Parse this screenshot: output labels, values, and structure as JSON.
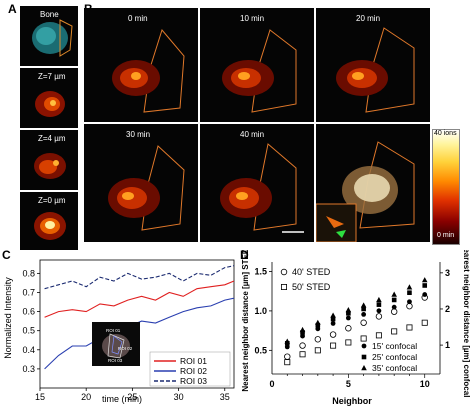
{
  "panels": {
    "a": "A",
    "b": "B",
    "c": "C",
    "d": "D"
  },
  "panel_a": {
    "labels": [
      "Bone",
      "Z=7 µm",
      "Z=4 µm",
      "Z=0 µm"
    ]
  },
  "panel_b": {
    "times": [
      "0 min",
      "10 min",
      "20 min",
      "30 min",
      "40 min"
    ],
    "colorbar": {
      "top": "40 ions",
      "bottom": "0 min"
    }
  },
  "chart_data": [
    {
      "type": "line",
      "xlabel": "time (min)",
      "ylabel": "Normalized Intensity",
      "xlim": [
        15,
        36
      ],
      "ylim": [
        0.2,
        0.87
      ],
      "xticks": [
        15,
        20,
        25,
        30,
        35
      ],
      "yticks": [
        0.3,
        0.4,
        0.5,
        0.6,
        0.7,
        0.8
      ],
      "legend_position": "bottom-right",
      "inset_labels": [
        "ROI 01",
        "ROI 02",
        "ROI 03"
      ],
      "series": [
        {
          "name": "ROI 01",
          "color": "#e02020",
          "style": "solid",
          "x": [
            15.5,
            17,
            18.5,
            20,
            21.5,
            23,
            24.5,
            26,
            27.5,
            29,
            30.5,
            32,
            33.5,
            35,
            36
          ],
          "y": [
            0.57,
            0.6,
            0.61,
            0.6,
            0.64,
            0.63,
            0.66,
            0.68,
            0.66,
            0.7,
            0.68,
            0.72,
            0.73,
            0.74,
            0.76
          ]
        },
        {
          "name": "ROI 02",
          "color": "#2a3fb0",
          "style": "solid",
          "x": [
            15.5,
            17,
            18.5,
            20,
            21.5,
            23,
            24.5,
            26,
            27.5,
            29,
            30.5,
            32,
            33.5,
            35,
            36
          ],
          "y": [
            0.3,
            0.37,
            0.42,
            0.42,
            0.46,
            0.48,
            0.52,
            0.55,
            0.54,
            0.57,
            0.6,
            0.62,
            0.63,
            0.66,
            0.67
          ]
        },
        {
          "name": "ROI 03",
          "color": "#1a2a70",
          "style": "dashed",
          "x": [
            15.5,
            17,
            18.5,
            20,
            21.5,
            23,
            24.5,
            26,
            27.5,
            29,
            30.5,
            32,
            33.5,
            35,
            36
          ],
          "y": [
            0.72,
            0.74,
            0.76,
            0.73,
            0.78,
            0.76,
            0.8,
            0.77,
            0.78,
            0.8,
            0.76,
            0.8,
            0.79,
            0.83,
            0.84
          ]
        }
      ]
    },
    {
      "type": "scatter",
      "xlabel": "Neighbor",
      "ylabel": "Nearest neighbor distance [µm] STED",
      "ylabel2": "Nearest neighbor distance [µm] confocal",
      "xlim": [
        0,
        11
      ],
      "ylim": [
        0.2,
        1.62
      ],
      "ylim2": [
        0.2,
        3.3
      ],
      "xticks": [
        0,
        5,
        10
      ],
      "yticks": [
        0.5,
        1.0,
        1.5
      ],
      "yticks2": [
        1,
        2,
        3
      ],
      "legend_sted": [
        "40' STED",
        "50' STED"
      ],
      "legend_confocal": [
        "15' confocal",
        "25' confocal",
        "35' confocal"
      ],
      "series": [
        {
          "name": "40' STED",
          "marker": "open-circle",
          "axis": "left",
          "x": [
            1,
            2,
            3,
            4,
            5,
            6,
            7,
            8,
            9,
            10
          ],
          "y": [
            0.42,
            0.56,
            0.64,
            0.7,
            0.78,
            0.85,
            0.93,
            0.99,
            1.06,
            1.17
          ]
        },
        {
          "name": "50' STED",
          "marker": "open-square",
          "axis": "left",
          "x": [
            1,
            2,
            3,
            4,
            5,
            6,
            7,
            8,
            9,
            10
          ],
          "y": [
            0.35,
            0.45,
            0.5,
            0.56,
            0.6,
            0.65,
            0.69,
            0.74,
            0.79,
            0.85
          ]
        },
        {
          "name": "15' confocal",
          "marker": "filled-circle",
          "axis": "right",
          "x": [
            1,
            2,
            3,
            4,
            5,
            6,
            7,
            8,
            9,
            10
          ],
          "y": [
            0.95,
            1.25,
            1.45,
            1.6,
            1.75,
            1.85,
            1.95,
            2.05,
            2.2,
            2.4
          ]
        },
        {
          "name": "25' confocal",
          "marker": "filled-square",
          "axis": "right",
          "x": [
            1,
            2,
            3,
            4,
            5,
            6,
            7,
            8,
            9,
            10
          ],
          "y": [
            1.05,
            1.35,
            1.55,
            1.72,
            1.88,
            2.0,
            2.12,
            2.25,
            2.45,
            2.65
          ]
        },
        {
          "name": "35' confocal",
          "marker": "filled-triangle",
          "axis": "right",
          "x": [
            1,
            2,
            3,
            4,
            5,
            6,
            7,
            8,
            9,
            10
          ],
          "y": [
            1.1,
            1.42,
            1.62,
            1.82,
            1.97,
            2.1,
            2.25,
            2.4,
            2.6,
            2.8
          ]
        }
      ]
    }
  ]
}
